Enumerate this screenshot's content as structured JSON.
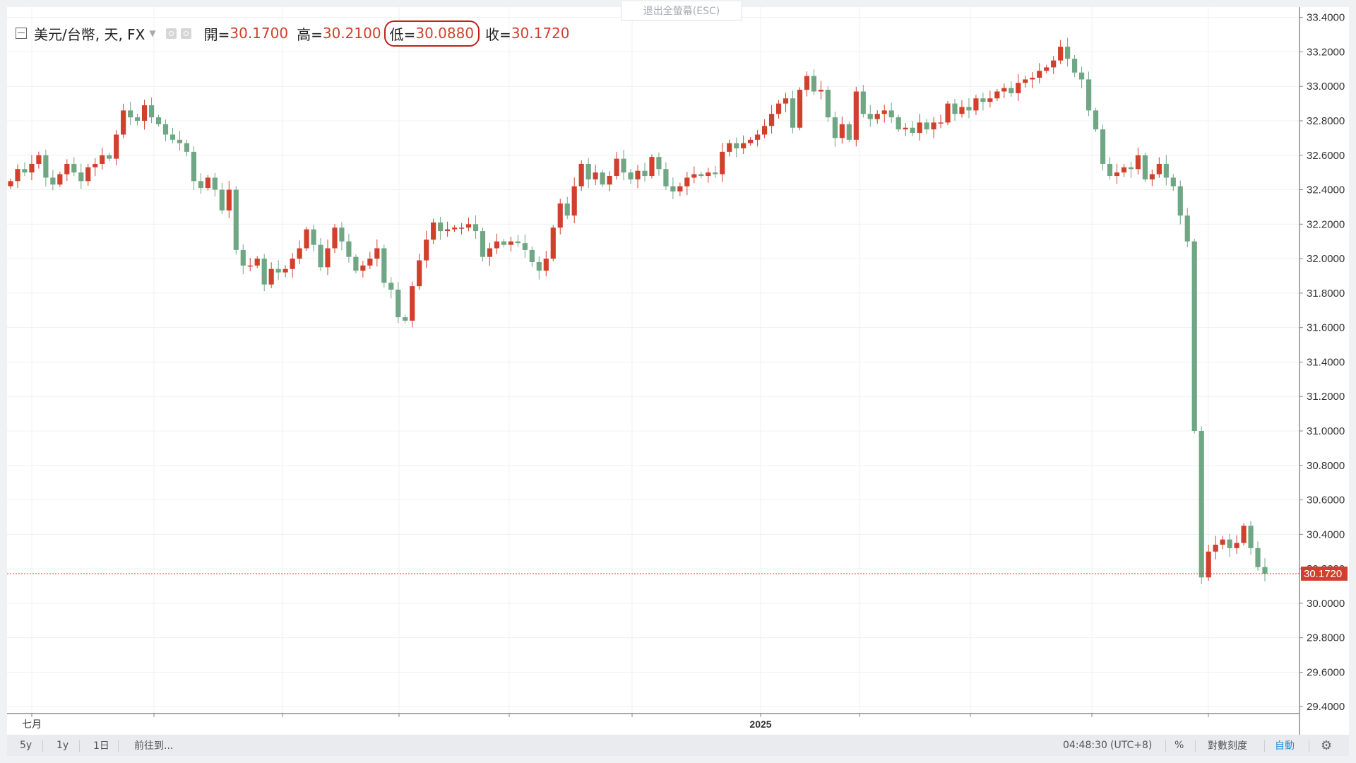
{
  "legend": {
    "symbol": "美元/台幣, 天, FX",
    "open_label": "開=",
    "open_value": "30.1700",
    "high_label": "高=",
    "high_value": "30.2100",
    "low_label": "低=",
    "low_value": "30.0880",
    "close_label": "收=",
    "close_value": "30.1720"
  },
  "exit_fullscreen": "退出全螢幕(ESC)",
  "bottom_bar": {
    "range_5y": "5y",
    "range_1y": "1y",
    "range_1d": "1日",
    "goto": "前往到...",
    "clock": "04:48:30",
    "timezone": "(UTC+8)",
    "percent": "%",
    "log_scale": "對數刻度",
    "auto": "自動",
    "settings_icon": "gear-icon"
  },
  "colors": {
    "up": "#d0402c",
    "down": "#6fa684",
    "last_price": "#d0402c",
    "highlight_ring": "#c0211f"
  },
  "chart_data": {
    "type": "candlestick",
    "title": "美元/台幣, 天, FX",
    "x_tick_labels": [
      "七月",
      "2025"
    ],
    "y_ticks": [
      "33.4000",
      "33.2000",
      "33.0000",
      "32.8000",
      "32.6000",
      "32.4000",
      "32.2000",
      "32.0000",
      "31.8000",
      "31.6000",
      "31.4000",
      "31.2000",
      "31.0000",
      "30.8000",
      "30.6000",
      "30.4000",
      "30.2000",
      "30.0000",
      "29.8000",
      "29.6000",
      "29.4000"
    ],
    "ylim": [
      29.36,
      33.46
    ],
    "last_price": 30.172,
    "last_price_label": "30.1720",
    "grid": true,
    "close": [
      32.45,
      32.52,
      32.5,
      32.55,
      32.6,
      32.47,
      32.43,
      32.49,
      32.55,
      32.5,
      32.45,
      32.53,
      32.55,
      32.6,
      32.58,
      32.72,
      32.86,
      32.82,
      32.8,
      32.89,
      32.82,
      32.78,
      32.72,
      32.69,
      32.67,
      32.62,
      32.45,
      32.41,
      32.47,
      32.4,
      32.28,
      32.4,
      32.05,
      31.96,
      31.96,
      32.0,
      31.85,
      31.94,
      31.92,
      31.94,
      32.0,
      32.06,
      32.17,
      32.08,
      31.95,
      32.06,
      32.18,
      32.1,
      32.01,
      31.93,
      31.96,
      32.0,
      32.06,
      31.86,
      31.82,
      31.66,
      31.64,
      31.84,
      31.99,
      32.11,
      32.21,
      32.16,
      32.17,
      32.18,
      32.18,
      32.2,
      32.16,
      32.01,
      32.06,
      32.1,
      32.08,
      32.1,
      32.09,
      32.05,
      31.98,
      31.93,
      32.0,
      32.18,
      32.32,
      32.25,
      32.42,
      32.55,
      32.46,
      32.5,
      32.43,
      32.48,
      32.58,
      32.5,
      32.46,
      32.51,
      32.48,
      32.59,
      32.52,
      32.42,
      32.39,
      32.42,
      32.47,
      32.49,
      32.48,
      32.5,
      32.49,
      32.62,
      32.67,
      32.64,
      32.67,
      32.69,
      32.72,
      32.77,
      32.84,
      32.9,
      32.93,
      32.76,
      32.98,
      33.06,
      32.97,
      32.98,
      32.82,
      32.7,
      32.78,
      32.69,
      32.97,
      32.84,
      32.81,
      32.84,
      32.86,
      32.82,
      32.75,
      32.76,
      32.73,
      32.79,
      32.75,
      32.79,
      32.79,
      32.9,
      32.84,
      32.88,
      32.86,
      32.93,
      32.91,
      32.93,
      32.97,
      32.99,
      32.96,
      33.02,
      33.04,
      33.05,
      33.09,
      33.11,
      33.15,
      33.23,
      33.16,
      33.08,
      33.04,
      32.86,
      32.75,
      32.55,
      32.48,
      32.5,
      32.53,
      32.52,
      32.6,
      32.46,
      32.49,
      32.55,
      32.47,
      32.42,
      32.25,
      32.1,
      31.0,
      30.15,
      30.3,
      30.34,
      30.37,
      30.32,
      30.35,
      30.45,
      30.32,
      30.21,
      30.172
    ]
  }
}
